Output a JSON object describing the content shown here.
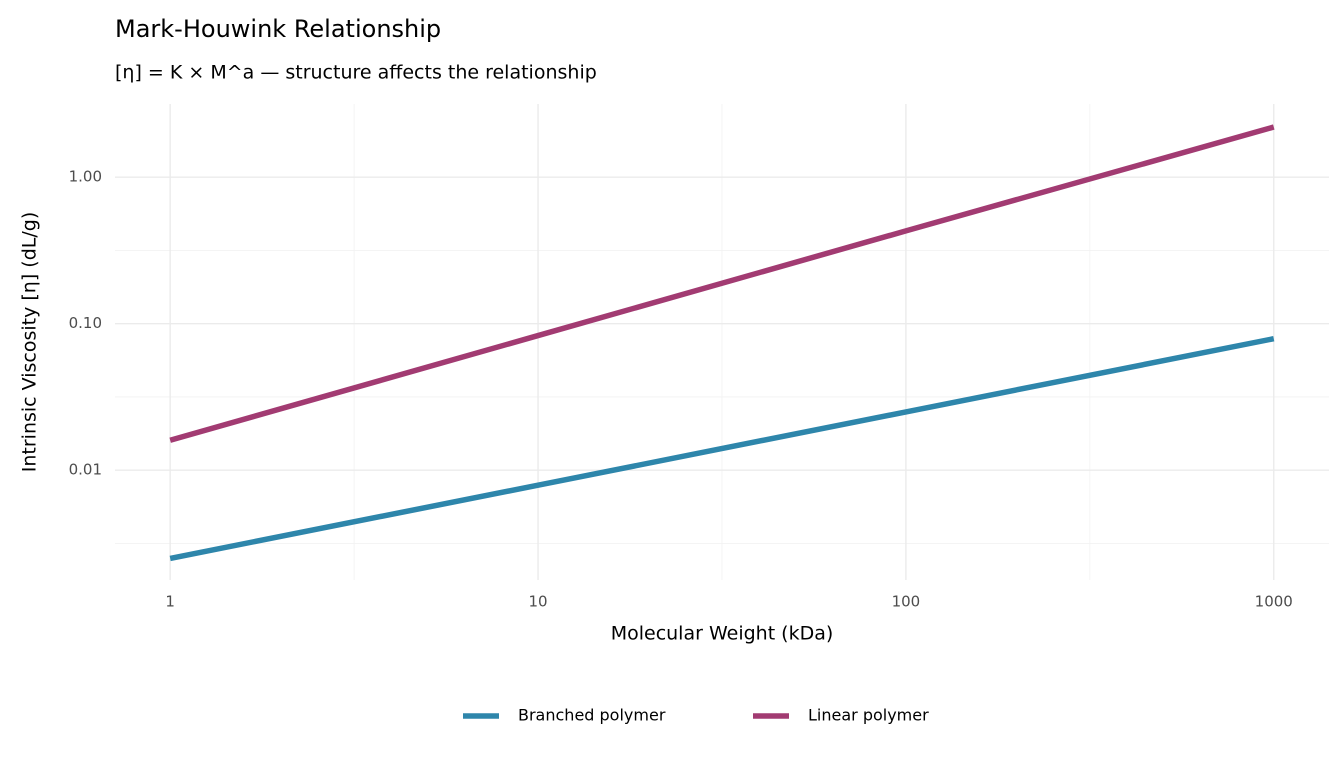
{
  "chart_data": {
    "type": "line",
    "title": "Mark-Houwink Relationship",
    "subtitle": "[η] = K × M^a — structure affects the relationship",
    "x_label": "Molecular Weight (kDa)",
    "y_label": "Intrinsic Viscosity [η] (dL/g)",
    "x": [
      1,
      10,
      100,
      1000
    ],
    "series": [
      {
        "name": "Branched polymer",
        "color": "#2e86ab",
        "values": [
          0.0025,
          0.0079,
          0.025,
          0.079
        ]
      },
      {
        "name": "Linear polymer",
        "color": "#a23b72",
        "values": [
          0.016,
          0.083,
          0.43,
          2.2
        ]
      }
    ],
    "x_log": true,
    "y_log": true,
    "xlim": [
      0.708,
      1413
    ],
    "ylim": [
      0.00178,
      3.16
    ],
    "xticks": [
      1,
      10,
      100,
      1000
    ],
    "yticks": [
      0.01,
      {
        "value": 0.1,
        "label": "0.10"
      },
      {
        "value": 1,
        "label": "1.00"
      }
    ],
    "grid": true,
    "legend": "bottom"
  }
}
